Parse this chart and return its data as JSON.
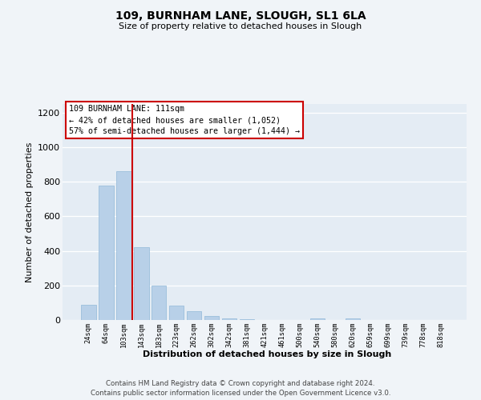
{
  "title": "109, BURNHAM LANE, SLOUGH, SL1 6LA",
  "subtitle": "Size of property relative to detached houses in Slough",
  "xlabel": "Distribution of detached houses by size in Slough",
  "ylabel": "Number of detached properties",
  "bar_color": "#b8d0e8",
  "bar_edge_color": "#90b8d8",
  "background_color": "#f0f4f8",
  "plot_bg_color": "#e4ecf4",
  "grid_color": "#ffffff",
  "categories": [
    "24sqm",
    "64sqm",
    "103sqm",
    "143sqm",
    "183sqm",
    "223sqm",
    "262sqm",
    "302sqm",
    "342sqm",
    "381sqm",
    "421sqm",
    "461sqm",
    "500sqm",
    "540sqm",
    "580sqm",
    "620sqm",
    "659sqm",
    "699sqm",
    "739sqm",
    "778sqm",
    "818sqm"
  ],
  "values": [
    90,
    780,
    860,
    420,
    200,
    85,
    52,
    22,
    8,
    5,
    0,
    0,
    0,
    10,
    0,
    10,
    0,
    0,
    0,
    0,
    0
  ],
  "ylim": [
    0,
    1250
  ],
  "yticks": [
    0,
    200,
    400,
    600,
    800,
    1000,
    1200
  ],
  "property_line_x": 2.5,
  "property_line_color": "#cc0000",
  "annotation_title": "109 BURNHAM LANE: 111sqm",
  "annotation_line1": "← 42% of detached houses are smaller (1,052)",
  "annotation_line2": "57% of semi-detached houses are larger (1,444) →",
  "footer_line1": "Contains HM Land Registry data © Crown copyright and database right 2024.",
  "footer_line2": "Contains public sector information licensed under the Open Government Licence v3.0."
}
